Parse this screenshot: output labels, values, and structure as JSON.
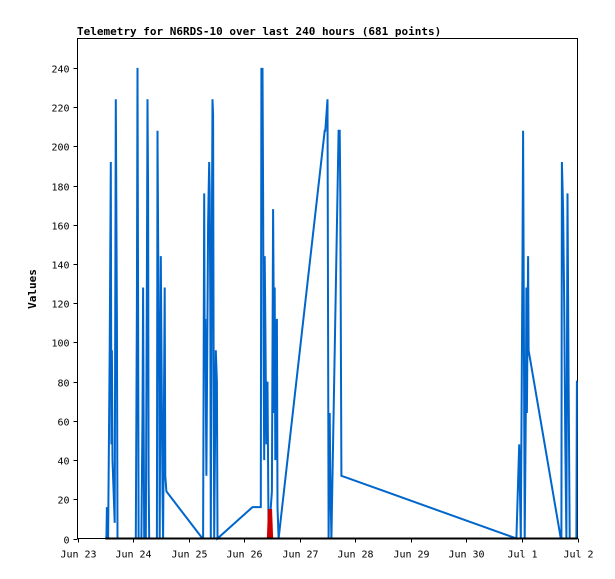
{
  "chart_data": {
    "type": "line",
    "title": "Telemetry for N6RDS-10 over last 240 hours (681 points)",
    "xlabel": "",
    "ylabel": "Values",
    "ylim": [
      0,
      255
    ],
    "y_ticks": [
      0,
      20,
      40,
      60,
      80,
      100,
      120,
      140,
      160,
      180,
      200,
      220,
      240
    ],
    "x_ticks": [
      "Jun 23",
      "Jun 24",
      "Jun 25",
      "Jun 26",
      "Jun 27",
      "Jun 28",
      "Jun 29",
      "Jun 30",
      "Jul 1",
      "Jul 2"
    ],
    "grid": false,
    "colors": {
      "series_main": "#0066cc",
      "series_alt": "#cc0000",
      "baseline": "#000000"
    },
    "series": [
      {
        "color": "#0066cc",
        "points": [
          [
            0.52,
            0
          ],
          [
            0.53,
            16
          ],
          [
            0.55,
            0
          ],
          [
            0.58,
            96
          ],
          [
            0.6,
            192
          ],
          [
            0.61,
            48
          ],
          [
            0.62,
            96
          ],
          [
            0.63,
            40
          ],
          [
            0.65,
            24
          ],
          [
            0.67,
            8
          ],
          [
            0.69,
            224
          ],
          [
            0.71,
            112
          ],
          [
            0.72,
            0
          ],
          [
            1.05,
            0
          ],
          [
            1.07,
            120
          ],
          [
            1.08,
            240
          ],
          [
            1.09,
            120
          ],
          [
            1.1,
            0
          ],
          [
            1.15,
            0
          ],
          [
            1.17,
            64
          ],
          [
            1.18,
            128
          ],
          [
            1.19,
            64
          ],
          [
            1.2,
            0
          ],
          [
            1.23,
            0
          ],
          [
            1.25,
            136
          ],
          [
            1.26,
            224
          ],
          [
            1.27,
            176
          ],
          [
            1.28,
            32
          ],
          [
            1.29,
            0
          ],
          [
            1.43,
            0
          ],
          [
            1.44,
            208
          ],
          [
            1.46,
            112
          ],
          [
            1.47,
            80
          ],
          [
            1.48,
            0
          ],
          [
            1.5,
            144
          ],
          [
            1.52,
            64
          ],
          [
            1.53,
            24
          ],
          [
            1.54,
            0
          ],
          [
            1.57,
            128
          ],
          [
            1.58,
            32
          ],
          [
            1.6,
            24
          ],
          [
            2.25,
            0
          ],
          [
            2.26,
            0
          ],
          [
            2.28,
            176
          ],
          [
            2.29,
            88
          ],
          [
            2.3,
            112
          ],
          [
            2.32,
            32
          ],
          [
            2.35,
            160
          ],
          [
            2.36,
            176
          ],
          [
            2.37,
            192
          ],
          [
            2.38,
            176
          ],
          [
            2.39,
            120
          ],
          [
            2.4,
            0
          ],
          [
            2.42,
            160
          ],
          [
            2.43,
            224
          ],
          [
            2.44,
            216
          ],
          [
            2.45,
            96
          ],
          [
            2.46,
            0
          ],
          [
            2.49,
            96
          ],
          [
            2.51,
            80
          ],
          [
            2.52,
            0
          ],
          [
            3.15,
            16
          ],
          [
            3.3,
            16
          ],
          [
            3.31,
            240
          ],
          [
            3.32,
            160
          ],
          [
            3.33,
            240
          ],
          [
            3.34,
            176
          ],
          [
            3.35,
            96
          ],
          [
            3.36,
            40
          ],
          [
            3.37,
            144
          ],
          [
            3.38,
            112
          ],
          [
            3.39,
            80
          ],
          [
            3.4,
            48
          ],
          [
            3.42,
            80
          ],
          [
            3.44,
            0
          ],
          [
            3.5,
            24
          ],
          [
            3.52,
            168
          ],
          [
            3.53,
            128
          ],
          [
            3.54,
            64
          ],
          [
            3.55,
            128
          ],
          [
            3.56,
            40
          ],
          [
            3.58,
            96
          ],
          [
            3.59,
            112
          ],
          [
            3.6,
            16
          ],
          [
            3.62,
            0
          ],
          [
            4.45,
            208
          ],
          [
            4.46,
            208
          ],
          [
            4.5,
            224
          ],
          [
            4.52,
            0
          ],
          [
            4.54,
            64
          ],
          [
            4.55,
            32
          ],
          [
            4.57,
            0
          ],
          [
            4.7,
            208
          ],
          [
            4.71,
            208
          ],
          [
            4.72,
            208
          ],
          [
            4.73,
            176
          ],
          [
            4.75,
            32
          ],
          [
            7.9,
            0
          ],
          [
            7.95,
            48
          ],
          [
            7.96,
            32
          ],
          [
            7.98,
            0
          ],
          [
            8.01,
            144
          ],
          [
            8.02,
            208
          ],
          [
            8.03,
            144
          ],
          [
            8.04,
            64
          ],
          [
            8.05,
            0
          ],
          [
            8.07,
            64
          ],
          [
            8.08,
            128
          ],
          [
            8.09,
            64
          ],
          [
            8.11,
            144
          ],
          [
            8.12,
            96
          ],
          [
            8.7,
            0
          ],
          [
            8.71,
            0
          ],
          [
            8.72,
            192
          ],
          [
            8.74,
            168
          ],
          [
            8.76,
            120
          ],
          [
            8.78,
            48
          ],
          [
            8.8,
            0
          ],
          [
            8.82,
            176
          ],
          [
            8.84,
            80
          ],
          [
            8.86,
            0
          ],
          [
            8.98,
            0
          ],
          [
            8.99,
            80
          ],
          [
            9.0,
            80
          ]
        ]
      },
      {
        "color": "#cc0000",
        "points": [
          [
            3.43,
            0
          ],
          [
            3.45,
            15
          ],
          [
            3.47,
            0
          ],
          [
            3.48,
            15
          ],
          [
            3.5,
            0
          ]
        ]
      }
    ],
    "baseline": [
      [
        0.5,
        0
      ],
      [
        9.0,
        0
      ]
    ]
  }
}
